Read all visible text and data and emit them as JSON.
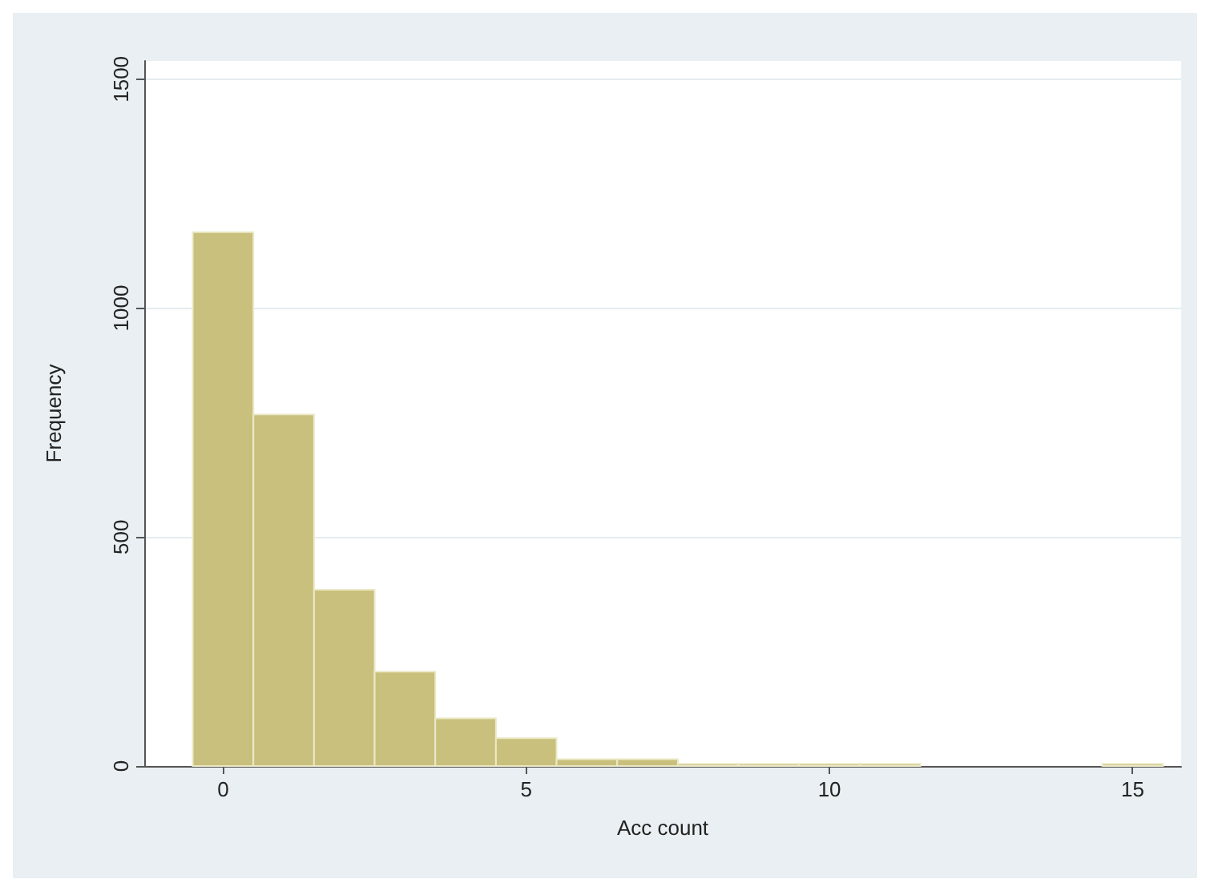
{
  "chart_data": {
    "type": "histogram",
    "xlabel": "Acc count",
    "ylabel": "Frequency",
    "bins": [
      -0.5,
      0.5,
      1.5,
      2.5,
      3.5,
      4.5,
      5.5,
      6.5,
      7.5,
      8.5,
      9.5,
      10.5,
      11.5,
      12.5,
      13.5,
      14.5,
      15.5
    ],
    "values": [
      1166,
      768,
      385,
      206,
      104,
      61,
      15,
      15,
      5,
      5,
      5,
      5,
      0,
      0,
      0,
      5
    ],
    "color": "#c8c07c",
    "xlim": [
      -1.3,
      15.8
    ],
    "xticks": [
      0,
      5,
      10,
      15
    ],
    "ylim": [
      0,
      1540
    ],
    "yticks": [
      0,
      500,
      1000,
      1500
    ],
    "grid": "y"
  }
}
